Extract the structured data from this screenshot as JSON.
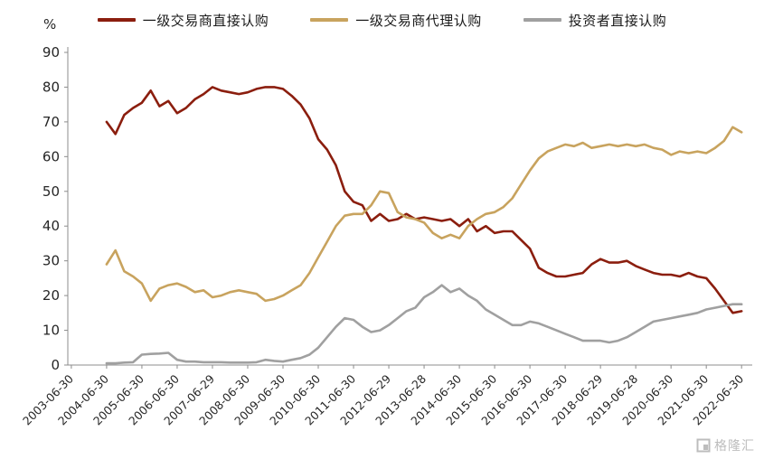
{
  "unit_label": "%",
  "watermark_text": "格隆汇",
  "legend": [
    {
      "label": "一级交易商直接认购",
      "color": "#8b1e0e"
    },
    {
      "label": "一级交易商代理认购",
      "color": "#c8a35e"
    },
    {
      "label": "投资者直接认购",
      "color": "#a0a0a0"
    }
  ],
  "chart_data": {
    "type": "line",
    "title": "",
    "xlabel": "",
    "ylabel": "%",
    "ylim": [
      0,
      90
    ],
    "yticks": [
      0,
      10,
      20,
      30,
      40,
      50,
      60,
      70,
      80,
      90
    ],
    "xlim": [
      2003.4,
      2022.7
    ],
    "grid": false,
    "legend_position": "top",
    "x_tick_labels": [
      "2003-06-30",
      "2004-06-30",
      "2005-06-30",
      "2006-06-30",
      "2007-06-29",
      "2008-06-30",
      "2009-06-30",
      "2010-06-30",
      "2011-06-30",
      "2012-06-29",
      "2013-06-28",
      "2014-06-30",
      "2015-06-30",
      "2016-06-30",
      "2017-06-30",
      "2018-06-29",
      "2019-06-28",
      "2020-06-30",
      "2021-06-30",
      "2022-06-30"
    ],
    "x_tick_positions": [
      2003.5,
      2004.5,
      2005.5,
      2006.5,
      2007.5,
      2008.5,
      2009.5,
      2010.5,
      2011.5,
      2012.5,
      2013.5,
      2014.5,
      2015.5,
      2016.5,
      2017.5,
      2018.5,
      2019.5,
      2020.5,
      2021.5,
      2022.5
    ],
    "x": [
      2004.5,
      2004.75,
      2005.0,
      2005.25,
      2005.5,
      2005.75,
      2006.0,
      2006.25,
      2006.5,
      2006.75,
      2007.0,
      2007.25,
      2007.5,
      2007.75,
      2008.0,
      2008.25,
      2008.5,
      2008.75,
      2009.0,
      2009.25,
      2009.5,
      2009.75,
      2010.0,
      2010.25,
      2010.5,
      2010.75,
      2011.0,
      2011.25,
      2011.5,
      2011.75,
      2012.0,
      2012.25,
      2012.5,
      2012.75,
      2013.0,
      2013.25,
      2013.5,
      2013.75,
      2014.0,
      2014.25,
      2014.5,
      2014.75,
      2015.0,
      2015.25,
      2015.5,
      2015.75,
      2016.0,
      2016.25,
      2016.5,
      2016.75,
      2017.0,
      2017.25,
      2017.5,
      2017.75,
      2018.0,
      2018.25,
      2018.5,
      2018.75,
      2019.0,
      2019.25,
      2019.5,
      2019.75,
      2020.0,
      2020.25,
      2020.5,
      2020.75,
      2021.0,
      2021.25,
      2021.5,
      2021.75,
      2022.0,
      2022.25,
      2022.5
    ],
    "series": [
      {
        "name": "一级交易商直接认购",
        "color": "#8b1e0e",
        "values": [
          70,
          66.5,
          72,
          74,
          75.5,
          79,
          74.5,
          76,
          72.5,
          74,
          76.5,
          78,
          80,
          79,
          78.5,
          78,
          78.5,
          79.5,
          80,
          80,
          79.5,
          77.5,
          75,
          71,
          65,
          62,
          57.5,
          50,
          47,
          46,
          41.5,
          43.5,
          41.5,
          42,
          43.5,
          42,
          42.5,
          42,
          41.5,
          42,
          40,
          42,
          38.5,
          40,
          38,
          38.5,
          38.5,
          36,
          33.5,
          28,
          26.5,
          25.5,
          25.5,
          26,
          26.5,
          29,
          30.5,
          29.5,
          29.5,
          30,
          28.5,
          27.5,
          26.5,
          26,
          26,
          25.5,
          26.5,
          25.5,
          25,
          22,
          18.5,
          15,
          15.5
        ]
      },
      {
        "name": "一级交易商代理认购",
        "color": "#c8a35e",
        "values": [
          29,
          33,
          27,
          25.5,
          23.5,
          18.5,
          22,
          23,
          23.5,
          22.5,
          21,
          21.5,
          19.5,
          20,
          21,
          21.5,
          21,
          20.5,
          18.5,
          19,
          20,
          21.5,
          23,
          26.5,
          31,
          35.5,
          40,
          43,
          43.5,
          43.5,
          46,
          50,
          49.5,
          44,
          42.5,
          42,
          41,
          38,
          36.5,
          37.5,
          36.5,
          40,
          42,
          43.5,
          44,
          45.5,
          48,
          52,
          56,
          59.5,
          61.5,
          62.5,
          63.5,
          63,
          64,
          62.5,
          63,
          63.5,
          63,
          63.5,
          63,
          63.5,
          62.5,
          62,
          60.5,
          61.5,
          61,
          61.5,
          61,
          62.5,
          64.5,
          68.5,
          67
        ]
      },
      {
        "name": "投资者直接认购",
        "color": "#a0a0a0",
        "values": [
          0.5,
          0.5,
          0.7,
          0.8,
          3,
          3.2,
          3.3,
          3.5,
          1.5,
          1,
          1,
          0.8,
          0.8,
          0.8,
          0.7,
          0.7,
          0.7,
          0.8,
          1.5,
          1.2,
          1,
          1.5,
          2,
          3,
          5,
          8,
          11,
          13.5,
          13,
          11,
          9.5,
          10,
          11.5,
          13.5,
          15.5,
          16.5,
          19.5,
          21,
          23,
          21,
          22,
          20,
          18.5,
          16,
          14.5,
          13,
          11.5,
          11.5,
          12.5,
          12,
          11,
          10,
          9,
          8,
          7,
          7,
          7,
          6.5,
          7,
          8,
          9.5,
          11,
          12.5,
          13,
          13.5,
          14,
          14.5,
          15,
          16,
          16.5,
          17,
          17.5,
          17.5
        ]
      }
    ]
  }
}
